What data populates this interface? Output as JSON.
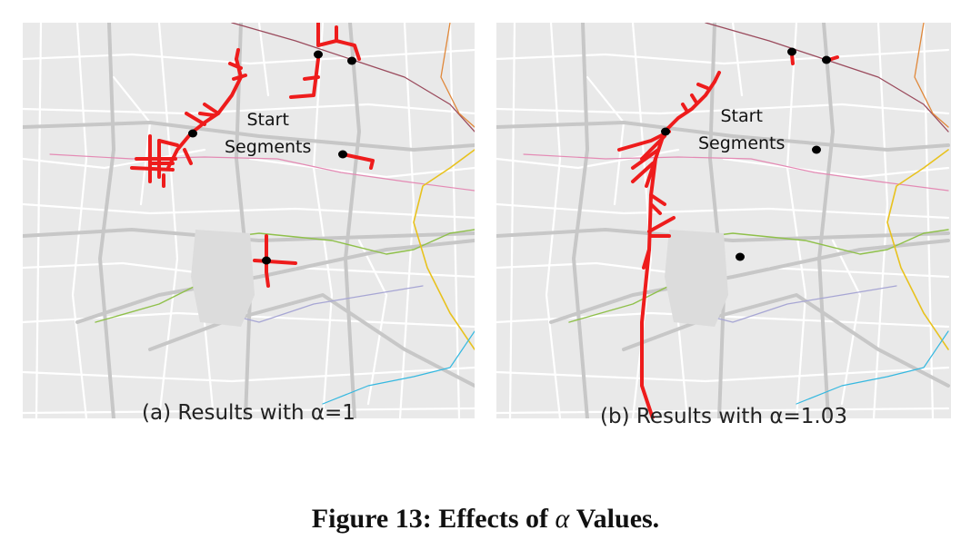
{
  "figure": {
    "number_label": "Figure 13:",
    "text_before": "Effects of",
    "symbol": "α",
    "text_after": "Values."
  },
  "colors": {
    "map_background": "#e9e9e9",
    "minor_road": "#ffffff",
    "major_road": "#c7c7c7",
    "trajectory": "#ee1c1c",
    "start_point": "#000000",
    "line_pink": "#e48ab4",
    "line_green": "#8fc04a",
    "line_orange": "#e0883a",
    "line_yellow": "#e8c21e",
    "line_maroon": "#9a4a5c",
    "line_lavender": "#a7a6d4",
    "line_cyan": "#35b8e0"
  },
  "panels": [
    {
      "id": "a",
      "caption": "(a) Results with α=1",
      "annotation_line1": "Start",
      "annotation_line2": "Segments",
      "start_points": 5
    },
    {
      "id": "b",
      "caption": "(b) Results with α=1.03",
      "annotation_line1": "Start",
      "annotation_line2": "Segments",
      "start_points": 5
    }
  ]
}
